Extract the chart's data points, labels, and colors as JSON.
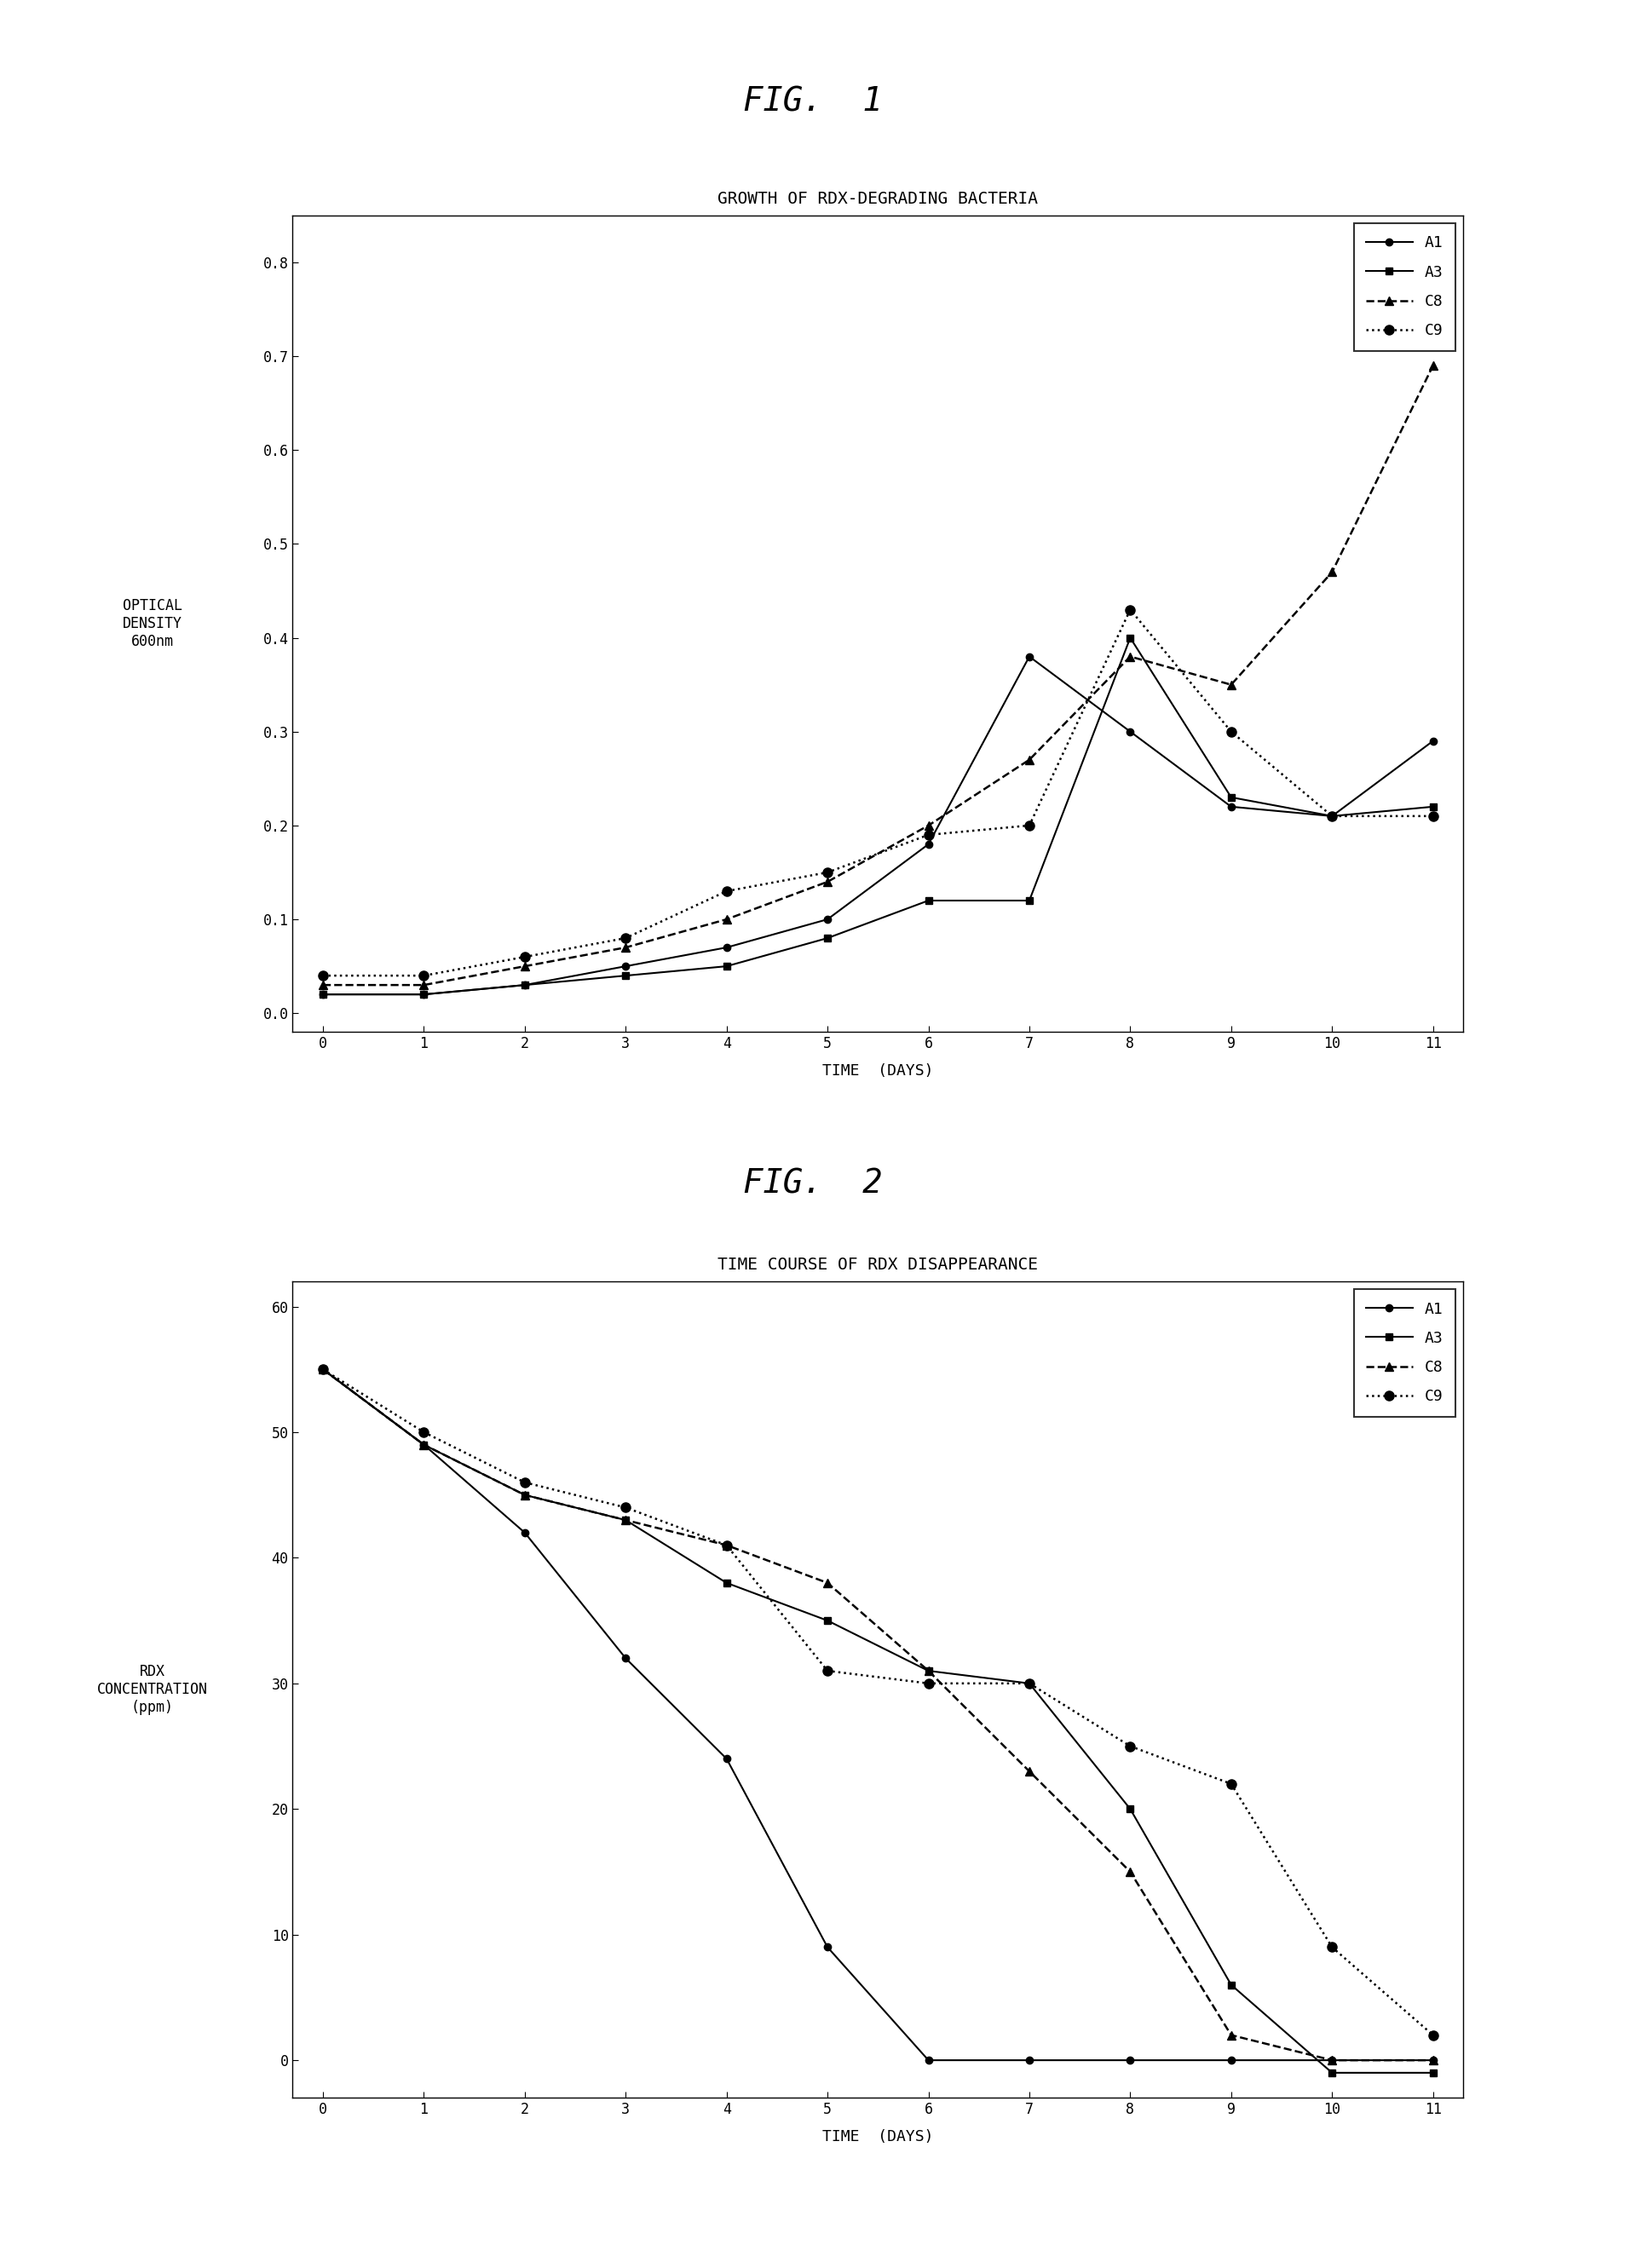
{
  "fig1": {
    "title_fig": "FIG.  1",
    "title_chart": "GROWTH OF RDX-DEGRADING BACTERIA",
    "xlabel": "TIME  (DAYS)",
    "ylabel": "OPTICAL\nDENSITY\n600nm",
    "xlim": [
      -0.3,
      11.3
    ],
    "ylim": [
      -0.02,
      0.85
    ],
    "yticks": [
      0.0,
      0.1,
      0.2,
      0.3,
      0.4,
      0.5,
      0.6,
      0.7,
      0.8
    ],
    "xticks": [
      0,
      1,
      2,
      3,
      4,
      5,
      6,
      7,
      8,
      9,
      10,
      11
    ],
    "series_order": [
      "A1",
      "A3",
      "C8",
      "C9"
    ],
    "series": {
      "A1": {
        "x": [
          0,
          1,
          2,
          3,
          4,
          5,
          6,
          7,
          8,
          9,
          10,
          11
        ],
        "y": [
          0.02,
          0.02,
          0.03,
          0.05,
          0.07,
          0.1,
          0.18,
          0.38,
          0.3,
          0.22,
          0.21,
          0.29
        ],
        "linestyle": "-",
        "marker": "o",
        "linewidth": 1.5,
        "markersize": 6
      },
      "A3": {
        "x": [
          0,
          1,
          2,
          3,
          4,
          5,
          6,
          7,
          8,
          9,
          10,
          11
        ],
        "y": [
          0.02,
          0.02,
          0.03,
          0.04,
          0.05,
          0.08,
          0.12,
          0.12,
          0.4,
          0.23,
          0.21,
          0.22
        ],
        "linestyle": "-",
        "marker": "s",
        "linewidth": 1.5,
        "markersize": 6
      },
      "C8": {
        "x": [
          0,
          1,
          2,
          3,
          4,
          5,
          6,
          7,
          8,
          9,
          10,
          11
        ],
        "y": [
          0.03,
          0.03,
          0.05,
          0.07,
          0.1,
          0.14,
          0.2,
          0.27,
          0.38,
          0.35,
          0.47,
          0.69
        ],
        "linestyle": "--",
        "marker": "^",
        "linewidth": 1.8,
        "markersize": 7
      },
      "C9": {
        "x": [
          0,
          1,
          2,
          3,
          4,
          5,
          6,
          7,
          8,
          9,
          10,
          11
        ],
        "y": [
          0.04,
          0.04,
          0.06,
          0.08,
          0.13,
          0.15,
          0.19,
          0.2,
          0.43,
          0.3,
          0.21,
          0.21
        ],
        "linestyle": ":",
        "marker": "o",
        "linewidth": 1.8,
        "markersize": 8
      }
    }
  },
  "fig2": {
    "title_fig": "FIG.  2",
    "title_chart": "TIME COURSE OF RDX DISAPPEARANCE",
    "xlabel": "TIME  (DAYS)",
    "ylabel": "RDX\nCONCENTRATION\n(ppm)",
    "xlim": [
      -0.3,
      11.3
    ],
    "ylim": [
      -3,
      62
    ],
    "yticks": [
      0,
      10,
      20,
      30,
      40,
      50,
      60
    ],
    "xticks": [
      0,
      1,
      2,
      3,
      4,
      5,
      6,
      7,
      8,
      9,
      10,
      11
    ],
    "series_order": [
      "A1",
      "A3",
      "C8",
      "C9"
    ],
    "series": {
      "A1": {
        "x": [
          0,
          1,
          2,
          3,
          4,
          5,
          6,
          7,
          8,
          9,
          10,
          11
        ],
        "y": [
          55,
          49,
          42,
          32,
          24,
          9,
          0,
          0,
          0,
          0,
          0,
          0
        ],
        "linestyle": "-",
        "marker": "o",
        "linewidth": 1.5,
        "markersize": 6
      },
      "A3": {
        "x": [
          0,
          1,
          2,
          3,
          4,
          5,
          6,
          7,
          8,
          9,
          10,
          11
        ],
        "y": [
          55,
          49,
          45,
          43,
          38,
          35,
          31,
          30,
          20,
          6,
          -1,
          -1
        ],
        "linestyle": "-",
        "marker": "s",
        "linewidth": 1.5,
        "markersize": 6
      },
      "C8": {
        "x": [
          0,
          1,
          2,
          3,
          4,
          5,
          6,
          7,
          8,
          9,
          10,
          11
        ],
        "y": [
          55,
          49,
          45,
          43,
          41,
          38,
          31,
          23,
          15,
          2,
          0,
          0
        ],
        "linestyle": "--",
        "marker": "^",
        "linewidth": 1.8,
        "markersize": 7
      },
      "C9": {
        "x": [
          0,
          1,
          2,
          3,
          4,
          5,
          6,
          7,
          8,
          9,
          10,
          11
        ],
        "y": [
          55,
          50,
          46,
          44,
          41,
          31,
          30,
          30,
          25,
          22,
          9,
          2
        ],
        "linestyle": ":",
        "marker": "o",
        "linewidth": 1.8,
        "markersize": 8
      }
    }
  },
  "background_color": "#ffffff",
  "font_color": "#000000",
  "fig_label_fontsize": 28,
  "chart_title_fontsize": 14,
  "axis_label_fontsize": 13,
  "tick_fontsize": 12,
  "legend_fontsize": 13
}
